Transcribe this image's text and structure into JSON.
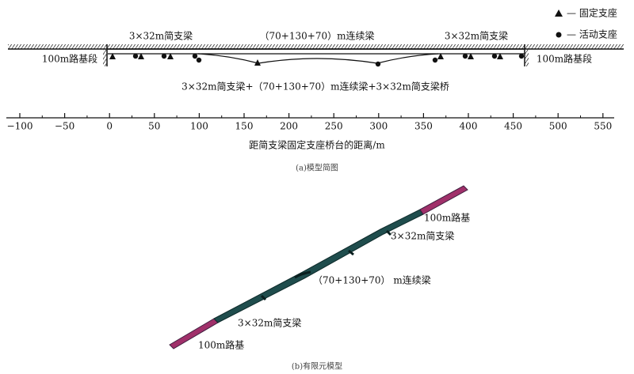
{
  "legend": {
    "fixed": "— 固定支座",
    "movable": "— 活动支座"
  },
  "diagram_a": {
    "labels": {
      "left_simple": "3×32m简支梁",
      "continuous": "（70+130+70）m连续梁",
      "right_simple": "3×32m简支梁",
      "left_subgrade": "100m路基段",
      "right_subgrade": "100m路基段",
      "bridge": "3×32m简支梁+（70+130+70）m连续梁+3×32m简支梁桥"
    },
    "axis_ticks": [
      "−100",
      "−50",
      "0",
      "50",
      "100",
      "150",
      "200",
      "250",
      "300",
      "350",
      "400",
      "450",
      "500",
      "550"
    ],
    "axis_title": "距简支梁固定支座桥台的距离/m",
    "caption": "(a)模型简图"
  },
  "diagram_b": {
    "labels": {
      "top_subgrade": "100m路基",
      "top_simple": "3×32m简支梁",
      "continuous": "（70+130+70） m连续梁",
      "bottom_simple": "3×32m简支梁",
      "bottom_subgrade": "100m路基"
    },
    "caption": "(b)有限元模型"
  }
}
